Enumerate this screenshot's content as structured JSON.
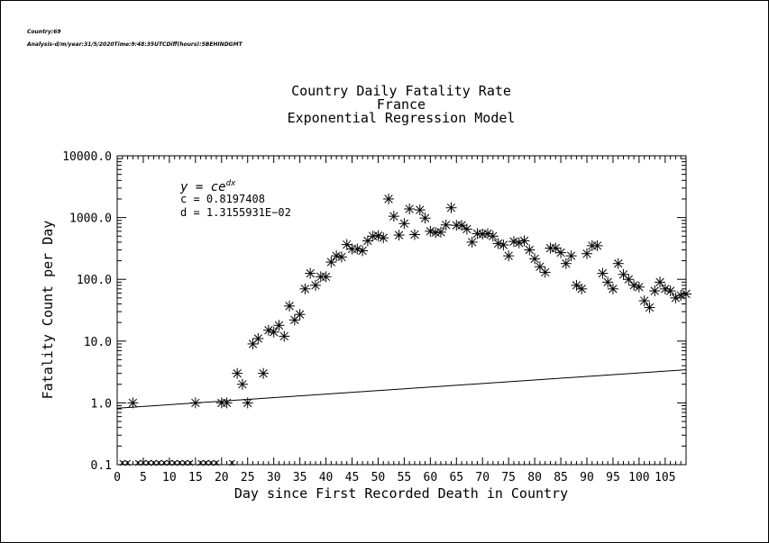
{
  "header": {
    "line1": "Country:69",
    "line2": "Analysis-d/m/year:31/5/2020Time:9:48:35UTCDiff(hours):5BEHINDGMT"
  },
  "equation": {
    "formula": "y = ce",
    "exponent": "dx",
    "c_line": "c = 0.8197408",
    "d_line": "d = 1.3155931E−02"
  },
  "chart_data": {
    "type": "scatter",
    "title": "Country Daily Fatality Rate",
    "subtitle": "France",
    "subtitle2": "Exponential Regression Model",
    "xlabel": "Day since First Recorded Death in Country",
    "ylabel": "Fatality Count per Day",
    "xlim": [
      0,
      109
    ],
    "ylim": [
      0.1,
      10000
    ],
    "yscale": "log",
    "grid": false,
    "xticks": [
      "0",
      "5",
      "10",
      "15",
      "20",
      "25",
      "30",
      "35",
      "40",
      "45",
      "50",
      "55",
      "60",
      "65",
      "70",
      "75",
      "80",
      "85",
      "90",
      "95",
      "100",
      "105"
    ],
    "yticks": [
      "0.1",
      "1.0",
      "10.0",
      "100.0",
      "1000.0",
      "10000.0"
    ],
    "series": [
      {
        "type": "scatter",
        "marker": "asterisk",
        "x": [
          3,
          15,
          20,
          21,
          23,
          24,
          25,
          26,
          27,
          28,
          29,
          30,
          31,
          32,
          33,
          34,
          35,
          36,
          37,
          38,
          39,
          40,
          41,
          42,
          43,
          44,
          45,
          46,
          47,
          48,
          49,
          50,
          51,
          52,
          53,
          54,
          55,
          56,
          57,
          58,
          59,
          60,
          61,
          62,
          63,
          64,
          65,
          66,
          67,
          68,
          69,
          70,
          71,
          72,
          73,
          74,
          75,
          76,
          77,
          78,
          79,
          80,
          81,
          82,
          83,
          84,
          85,
          86,
          87,
          88,
          89,
          90,
          91,
          92,
          93,
          94,
          95,
          96,
          97,
          98,
          99,
          100,
          101,
          102,
          103,
          104,
          105,
          106,
          107,
          108,
          109
        ],
        "y": [
          1,
          1,
          1,
          1,
          3,
          2,
          1,
          9,
          11,
          3,
          15,
          14,
          18,
          12,
          37,
          22,
          27,
          70,
          125,
          80,
          110,
          110,
          190,
          240,
          230,
          365,
          310,
          310,
          290,
          420,
          500,
          510,
          470,
          2000,
          1050,
          520,
          800,
          1380,
          530,
          1330,
          980,
          600,
          570,
          580,
          760,
          1440,
          750,
          750,
          650,
          400,
          550,
          540,
          550,
          500,
          380,
          360,
          240,
          410,
          390,
          420,
          300,
          215,
          160,
          130,
          320,
          320,
          270,
          180,
          240,
          80,
          70,
          260,
          350,
          350,
          125,
          90,
          70,
          180,
          120,
          100,
          80,
          75,
          45,
          35,
          65,
          90,
          70,
          65,
          50,
          55,
          58
        ]
      },
      {
        "type": "line",
        "model": "exponential",
        "c": 0.8197408,
        "d": 0.013155931,
        "x": [
          0,
          109
        ]
      }
    ]
  }
}
